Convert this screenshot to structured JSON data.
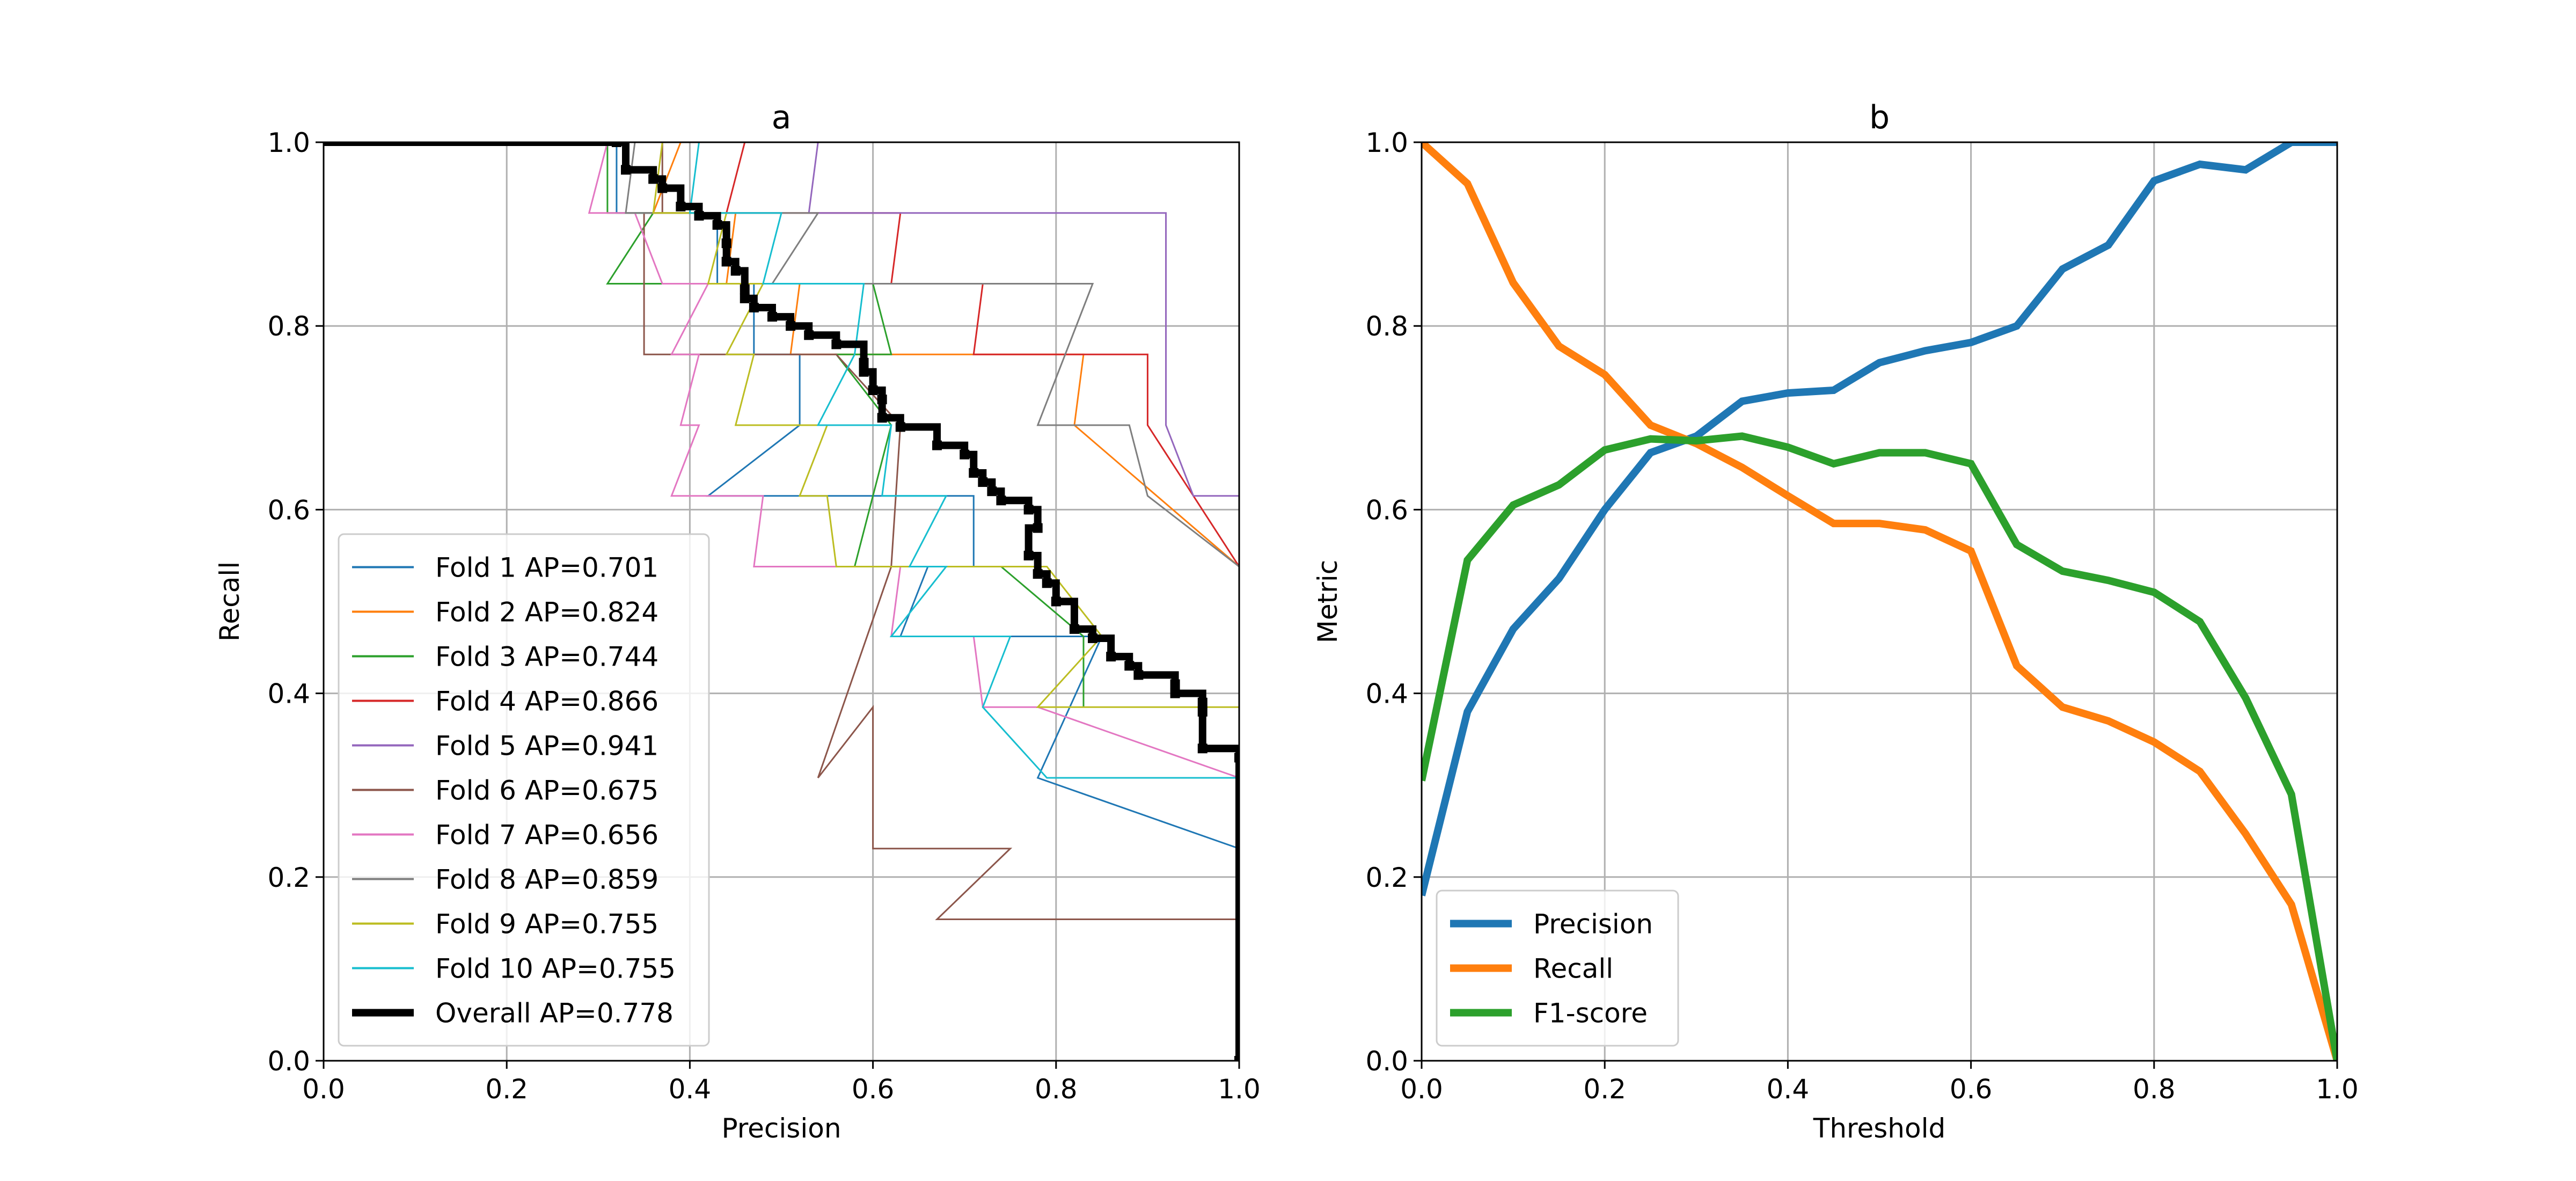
{
  "chart_data": [
    {
      "type": "line",
      "title": "a",
      "xlabel": "Precision",
      "ylabel": "Recall",
      "xlim": [
        0,
        1
      ],
      "ylim": [
        0,
        1
      ],
      "xticks": [
        "0.0",
        "0.2",
        "0.4",
        "0.6",
        "0.8",
        "1.0"
      ],
      "yticks": [
        "0.0",
        "0.2",
        "0.4",
        "0.6",
        "0.8",
        "1.0"
      ],
      "grid": true,
      "legend_position": "lower-left",
      "series": [
        {
          "name": "Fold 1 AP=0.701",
          "color": "#1f77b4",
          "width": 3,
          "step": false,
          "points": [
            [
              0,
              1
            ],
            [
              0.32,
              1
            ],
            [
              0.32,
              0.923
            ],
            [
              0.43,
              0.923
            ],
            [
              0.43,
              0.846
            ],
            [
              0.47,
              0.846
            ],
            [
              0.47,
              0.769
            ],
            [
              0.52,
              0.769
            ],
            [
              0.52,
              0.692
            ],
            [
              0.42,
              0.615
            ],
            [
              0.71,
              0.615
            ],
            [
              0.71,
              0.538
            ],
            [
              0.66,
              0.538
            ],
            [
              0.63,
              0.462
            ],
            [
              0.85,
              0.462
            ],
            [
              0.78,
              0.308
            ],
            [
              1,
              0.231
            ]
          ]
        },
        {
          "name": "Fold 2 AP=0.824",
          "color": "#ff7f0e",
          "width": 3,
          "step": false,
          "points": [
            [
              0,
              1
            ],
            [
              0.39,
              1
            ],
            [
              0.36,
              0.923
            ],
            [
              0.45,
              0.923
            ],
            [
              0.44,
              0.846
            ],
            [
              0.52,
              0.846
            ],
            [
              0.51,
              0.769
            ],
            [
              0.83,
              0.769
            ],
            [
              0.82,
              0.692
            ],
            [
              1,
              0.538
            ]
          ]
        },
        {
          "name": "Fold 3 AP=0.744",
          "color": "#2ca02c",
          "width": 3,
          "step": false,
          "points": [
            [
              0,
              1
            ],
            [
              0.31,
              1
            ],
            [
              0.31,
              0.923
            ],
            [
              0.36,
              0.923
            ],
            [
              0.31,
              0.846
            ],
            [
              0.6,
              0.846
            ],
            [
              0.62,
              0.769
            ],
            [
              0.56,
              0.769
            ],
            [
              0.62,
              0.692
            ],
            [
              0.58,
              0.538
            ],
            [
              0.74,
              0.538
            ],
            [
              0.83,
              0.462
            ],
            [
              0.83,
              0.385
            ]
          ]
        },
        {
          "name": "Fold 4 AP=0.866",
          "color": "#d62728",
          "width": 3,
          "step": false,
          "points": [
            [
              0,
              1
            ],
            [
              0.46,
              1
            ],
            [
              0.44,
              0.923
            ],
            [
              0.63,
              0.923
            ],
            [
              0.62,
              0.846
            ],
            [
              0.72,
              0.846
            ],
            [
              0.71,
              0.769
            ],
            [
              0.9,
              0.769
            ],
            [
              0.9,
              0.692
            ],
            [
              0.9,
              0.692
            ],
            [
              1,
              0.538
            ]
          ]
        },
        {
          "name": "Fold 5 AP=0.941",
          "color": "#9467bd",
          "width": 3,
          "step": false,
          "points": [
            [
              0,
              1
            ],
            [
              0.54,
              1
            ],
            [
              0.53,
              0.923
            ],
            [
              0.92,
              0.923
            ],
            [
              0.92,
              0.692
            ],
            [
              0.95,
              0.615
            ],
            [
              1,
              0.615
            ]
          ]
        },
        {
          "name": "Fold 6 AP=0.675",
          "color": "#8c564b",
          "width": 3,
          "step": false,
          "points": [
            [
              0,
              1
            ],
            [
              0.37,
              1
            ],
            [
              0.37,
              0.923
            ],
            [
              0.35,
              0.923
            ],
            [
              0.35,
              0.846
            ],
            [
              0.35,
              0.769
            ],
            [
              0.56,
              0.769
            ],
            [
              0.63,
              0.692
            ],
            [
              0.62,
              0.538
            ],
            [
              0.54,
              0.308
            ],
            [
              0.6,
              0.385
            ],
            [
              0.6,
              0.231
            ],
            [
              0.75,
              0.231
            ],
            [
              0.67,
              0.154
            ],
            [
              1,
              0.154
            ],
            [
              1,
              0
            ]
          ]
        },
        {
          "name": "Fold 7 AP=0.656",
          "color": "#e377c2",
          "width": 3,
          "step": false,
          "points": [
            [
              0,
              1
            ],
            [
              0.31,
              1
            ],
            [
              0.29,
              0.923
            ],
            [
              0.34,
              0.923
            ],
            [
              0.37,
              0.846
            ],
            [
              0.42,
              0.846
            ],
            [
              0.38,
              0.769
            ],
            [
              0.41,
              0.769
            ],
            [
              0.39,
              0.692
            ],
            [
              0.41,
              0.692
            ],
            [
              0.38,
              0.615
            ],
            [
              0.48,
              0.615
            ],
            [
              0.47,
              0.538
            ],
            [
              0.63,
              0.538
            ],
            [
              0.62,
              0.462
            ],
            [
              0.71,
              0.462
            ],
            [
              0.72,
              0.385
            ],
            [
              0.78,
              0.385
            ],
            [
              1,
              0.308
            ]
          ]
        },
        {
          "name": "Fold 8 AP=0.859",
          "color": "#7f7f7f",
          "width": 3,
          "step": false,
          "points": [
            [
              0,
              1
            ],
            [
              0.34,
              1
            ],
            [
              0.33,
              0.923
            ],
            [
              0.54,
              0.923
            ],
            [
              0.49,
              0.846
            ],
            [
              0.84,
              0.846
            ],
            [
              0.78,
              0.692
            ],
            [
              0.88,
              0.692
            ],
            [
              0.9,
              0.615
            ],
            [
              1,
              0.538
            ]
          ]
        },
        {
          "name": "Fold 9 AP=0.755",
          "color": "#bcbd22",
          "width": 3,
          "step": false,
          "points": [
            [
              0,
              1
            ],
            [
              0.37,
              1
            ],
            [
              0.36,
              0.923
            ],
            [
              0.44,
              0.923
            ],
            [
              0.42,
              0.846
            ],
            [
              0.48,
              0.846
            ],
            [
              0.44,
              0.769
            ],
            [
              0.47,
              0.769
            ],
            [
              0.45,
              0.692
            ],
            [
              0.55,
              0.692
            ],
            [
              0.52,
              0.615
            ],
            [
              0.55,
              0.615
            ],
            [
              0.56,
              0.538
            ],
            [
              0.79,
              0.538
            ],
            [
              0.85,
              0.462
            ],
            [
              0.78,
              0.385
            ],
            [
              1,
              0.385
            ]
          ]
        },
        {
          "name": "Fold 10 AP=0.755",
          "color": "#17becf",
          "width": 3,
          "step": false,
          "points": [
            [
              0,
              1
            ],
            [
              0.41,
              1
            ],
            [
              0.4,
              0.923
            ],
            [
              0.5,
              0.923
            ],
            [
              0.48,
              0.846
            ],
            [
              0.59,
              0.846
            ],
            [
              0.58,
              0.769
            ],
            [
              0.58,
              0.769
            ],
            [
              0.54,
              0.692
            ],
            [
              0.62,
              0.692
            ],
            [
              0.61,
              0.615
            ],
            [
              0.68,
              0.615
            ],
            [
              0.64,
              0.538
            ],
            [
              0.68,
              0.538
            ],
            [
              0.62,
              0.462
            ],
            [
              0.75,
              0.462
            ],
            [
              0.72,
              0.385
            ],
            [
              0.79,
              0.308
            ],
            [
              1,
              0.308
            ]
          ]
        },
        {
          "name": "Overall AP=0.778",
          "color": "#000000",
          "width": 14,
          "step": true,
          "markers": true,
          "points": [
            [
              0.32,
              1
            ],
            [
              0.33,
              0.97
            ],
            [
              0.36,
              0.96
            ],
            [
              0.37,
              0.95
            ],
            [
              0.39,
              0.93
            ],
            [
              0.41,
              0.92
            ],
            [
              0.43,
              0.91
            ],
            [
              0.44,
              0.89
            ],
            [
              0.44,
              0.87
            ],
            [
              0.45,
              0.86
            ],
            [
              0.46,
              0.84
            ],
            [
              0.46,
              0.83
            ],
            [
              0.47,
              0.82
            ],
            [
              0.49,
              0.81
            ],
            [
              0.51,
              0.8
            ],
            [
              0.53,
              0.79
            ],
            [
              0.56,
              0.78
            ],
            [
              0.59,
              0.76
            ],
            [
              0.59,
              0.75
            ],
            [
              0.6,
              0.73
            ],
            [
              0.61,
              0.72
            ],
            [
              0.61,
              0.7
            ],
            [
              0.63,
              0.69
            ],
            [
              0.67,
              0.67
            ],
            [
              0.7,
              0.66
            ],
            [
              0.71,
              0.64
            ],
            [
              0.72,
              0.63
            ],
            [
              0.73,
              0.62
            ],
            [
              0.74,
              0.61
            ],
            [
              0.77,
              0.6
            ],
            [
              0.78,
              0.58
            ],
            [
              0.77,
              0.55
            ],
            [
              0.78,
              0.53
            ],
            [
              0.79,
              0.52
            ],
            [
              0.8,
              0.5
            ],
            [
              0.82,
              0.47
            ],
            [
              0.84,
              0.46
            ],
            [
              0.86,
              0.44
            ],
            [
              0.88,
              0.43
            ],
            [
              0.89,
              0.42
            ],
            [
              0.93,
              0.41
            ],
            [
              0.93,
              0.4
            ],
            [
              0.96,
              0.39
            ],
            [
              0.96,
              0.38
            ],
            [
              0.96,
              0.34
            ],
            [
              1,
              0.33
            ],
            [
              1,
              0
            ]
          ]
        }
      ]
    },
    {
      "type": "line",
      "title": "b",
      "xlabel": "Threshold",
      "ylabel": "Metric",
      "xlim": [
        0,
        1
      ],
      "ylim": [
        0,
        1
      ],
      "xticks": [
        "0.0",
        "0.2",
        "0.4",
        "0.6",
        "0.8",
        "1.0"
      ],
      "yticks": [
        "0.0",
        "0.2",
        "0.4",
        "0.6",
        "0.8",
        "1.0"
      ],
      "grid": true,
      "legend_position": "lower-left",
      "x": [
        0,
        0.05,
        0.1,
        0.15,
        0.2,
        0.25,
        0.3,
        0.35,
        0.4,
        0.45,
        0.5,
        0.55,
        0.6,
        0.65,
        0.7,
        0.75,
        0.8,
        0.85,
        0.9,
        0.95,
        1.0
      ],
      "series": [
        {
          "name": "Precision",
          "color": "#1f77b4",
          "width": 14,
          "values": [
            0.18,
            0.38,
            0.47,
            0.525,
            0.6,
            0.662,
            0.68,
            0.718,
            0.727,
            0.73,
            0.76,
            0.773,
            0.782,
            0.8,
            0.862,
            0.888,
            0.958,
            0.976,
            0.97,
            1.0,
            1.0
          ]
        },
        {
          "name": "Recall",
          "color": "#ff7f0e",
          "width": 14,
          "values": [
            1.0,
            0.955,
            0.847,
            0.778,
            0.747,
            0.692,
            0.672,
            0.646,
            0.615,
            0.585,
            0.585,
            0.578,
            0.555,
            0.43,
            0.385,
            0.37,
            0.347,
            0.315,
            0.247,
            0.17,
            0.0
          ]
        },
        {
          "name": "F1-score",
          "color": "#2ca02c",
          "width": 14,
          "values": [
            0.305,
            0.545,
            0.605,
            0.627,
            0.665,
            0.677,
            0.675,
            0.68,
            0.668,
            0.65,
            0.662,
            0.662,
            0.65,
            0.562,
            0.533,
            0.523,
            0.51,
            0.478,
            0.395,
            0.29,
            0.0
          ]
        }
      ]
    }
  ]
}
